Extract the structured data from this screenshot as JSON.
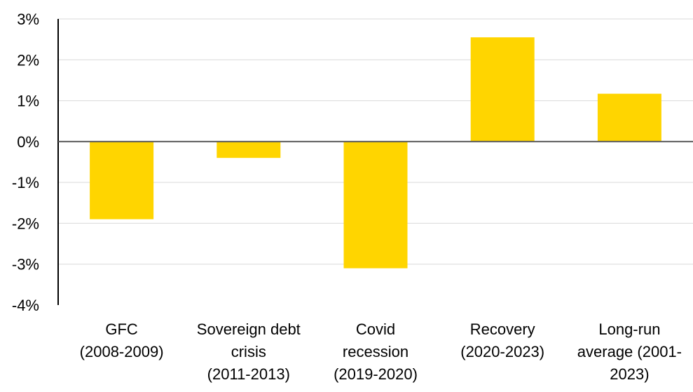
{
  "chart_data": {
    "type": "bar",
    "title": "",
    "xlabel": "",
    "ylabel": "",
    "categories": [
      [
        "GFC",
        "(2008-2009)"
      ],
      [
        "Sovereign debt",
        "crisis",
        "(2011-2013)"
      ],
      [
        "Covid",
        "recession",
        "(2019-2020)"
      ],
      [
        "Recovery",
        "(2020-2023)"
      ],
      [
        "Long-run",
        "average (2001-",
        "2023)"
      ]
    ],
    "values": [
      -1.9,
      -0.4,
      -3.1,
      2.55,
      1.17
    ],
    "ylim": [
      -4,
      3
    ],
    "yticks": [
      "3%",
      "2%",
      "1%",
      "0%",
      "-1%",
      "-2%",
      "-3%",
      "-4%"
    ],
    "ytick_values": [
      3,
      2,
      1,
      0,
      -1,
      -2,
      -3,
      -4
    ],
    "grid": true,
    "legend": "none",
    "colors": {
      "bar": "#FFD500",
      "grid": "#d9d9d9",
      "axis": "#000000",
      "zero_line": "#595959"
    }
  }
}
